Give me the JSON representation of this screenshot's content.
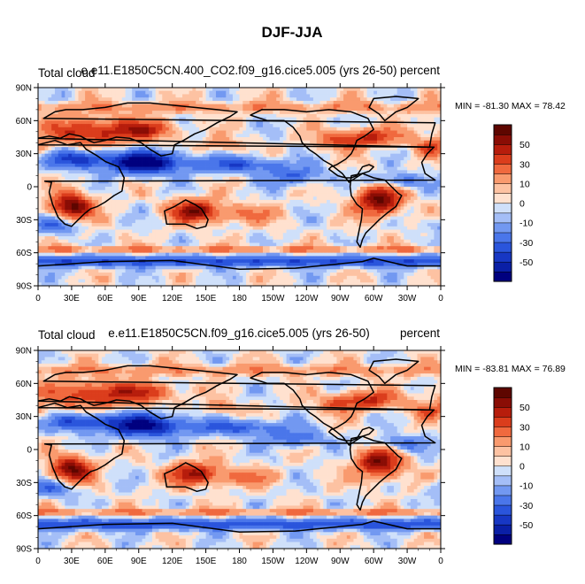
{
  "figure": {
    "title": "DJF-JJA"
  },
  "colorbar": {
    "levels": [
      -60,
      -50,
      -40,
      -30,
      -20,
      -10,
      -5,
      0,
      5,
      10,
      20,
      30,
      40,
      50,
      60
    ],
    "labels": [
      "50",
      "30",
      "10",
      "0",
      "-10",
      "-30",
      "-50"
    ],
    "label_values": [
      50,
      30,
      10,
      0,
      -10,
      -30,
      -50
    ],
    "colors": [
      "#00007f",
      "#0a1fa6",
      "#1737c4",
      "#2a55dc",
      "#4a76ea",
      "#7298f1",
      "#a4bef7",
      "#cfe0fa",
      "#ffe1cf",
      "#fdc2a2",
      "#f99a6e",
      "#f0693e",
      "#db3d1c",
      "#b71d0c",
      "#8a0d05",
      "#5e0600"
    ]
  },
  "chart_data": [
    {
      "type": "heatmap",
      "title": "DJF-JJA",
      "left_label": "Total cloud",
      "center_label": "e.e11.E1850C5CN.400_CO2.f09_g16.cice5.005 (yrs 26-50)",
      "right_label": "percent",
      "min_max_text": "MIN = -81.30 MAX =  78.42",
      "min": -81.3,
      "max": 78.42,
      "x_ticks": [
        "0",
        "30E",
        "60E",
        "90E",
        "120E",
        "150E",
        "180",
        "150W",
        "120W",
        "90W",
        "60W",
        "30W",
        "0"
      ],
      "x_values": [
        0,
        30,
        60,
        90,
        120,
        150,
        180,
        210,
        240,
        270,
        300,
        330,
        360
      ],
      "y_ticks": [
        "90N",
        "60N",
        "30N",
        "0",
        "30S",
        "60S",
        "90S"
      ],
      "y_values": [
        90,
        60,
        30,
        0,
        -30,
        -60,
        -90
      ],
      "xlim": [
        0,
        360
      ],
      "ylim": [
        -90,
        90
      ],
      "units": "percent",
      "contour_levels": [
        -60,
        -50,
        -40,
        -30,
        -20,
        -10,
        -5,
        0,
        5,
        10,
        20,
        30,
        40,
        50,
        60
      ]
    },
    {
      "type": "heatmap",
      "title": "DJF-JJA",
      "left_label": "Total cloud",
      "center_label": "e.e11.E1850C5CN.f09_g16.cice5.005 (yrs 26-50)",
      "right_label": "percent",
      "min_max_text": "MIN = -83.81 MAX =  76.89",
      "min": -83.81,
      "max": 76.89,
      "x_ticks": [
        "0",
        "30E",
        "60E",
        "90E",
        "120E",
        "150E",
        "180",
        "150W",
        "120W",
        "90W",
        "60W",
        "30W",
        "0"
      ],
      "x_values": [
        0,
        30,
        60,
        90,
        120,
        150,
        180,
        210,
        240,
        270,
        300,
        330,
        360
      ],
      "y_ticks": [
        "90N",
        "60N",
        "30N",
        "0",
        "30S",
        "60S",
        "90S"
      ],
      "y_values": [
        90,
        60,
        30,
        0,
        -30,
        -60,
        -90
      ],
      "xlim": [
        0,
        360
      ],
      "ylim": [
        -90,
        90
      ],
      "units": "percent",
      "contour_levels": [
        -60,
        -50,
        -40,
        -30,
        -20,
        -10,
        -5,
        0,
        5,
        10,
        20,
        30,
        40,
        50,
        60
      ]
    }
  ]
}
